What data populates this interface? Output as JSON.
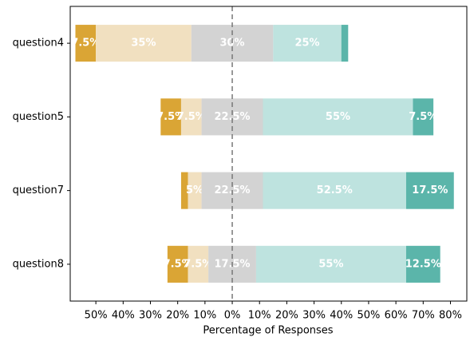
{
  "chart_data": {
    "type": "diverging_bar",
    "xlabel": "Percentage of Responses",
    "categories": [
      "question4",
      "question5",
      "question7",
      "question8"
    ],
    "series": [
      {
        "color": "#daa535",
        "values": [
          7.5,
          7.5,
          2.5,
          7.5
        ],
        "value_labels": [
          "7.5%",
          "7.5%",
          null,
          "7.5%"
        ]
      },
      {
        "color": "#f1e0c0",
        "values": [
          35,
          7.5,
          5,
          7.5
        ],
        "value_labels": [
          "35%",
          "7.5%",
          "5%",
          "7.5%"
        ]
      },
      {
        "color": "#d3d3d3",
        "values": [
          30,
          22.5,
          22.5,
          17.5
        ],
        "value_labels": [
          "30%",
          "22.5%",
          "22.5%",
          "17.5%"
        ]
      },
      {
        "color": "#bee3df",
        "values": [
          25,
          55,
          52.5,
          55
        ],
        "value_labels": [
          "25%",
          "55%",
          "52.5%",
          "55%"
        ]
      },
      {
        "color": "#5bb5aa",
        "values": [
          2.5,
          7.5,
          17.5,
          12.5
        ],
        "value_labels": [
          null,
          "7.5%",
          "17.5%",
          "12.5%"
        ]
      }
    ],
    "neutral_series": 2,
    "xlim": [
      -59.4,
      86
    ],
    "xticks": [
      {
        "value": -50,
        "label": "50%"
      },
      {
        "value": -40,
        "label": "40%"
      },
      {
        "value": -30,
        "label": "30%"
      },
      {
        "value": -20,
        "label": "20%"
      },
      {
        "value": -10,
        "label": "10%"
      },
      {
        "value": 0,
        "label": "0%"
      },
      {
        "value": 10,
        "label": "10%"
      },
      {
        "value": 20,
        "label": "20%"
      },
      {
        "value": 30,
        "label": "30%"
      },
      {
        "value": 40,
        "label": "40%"
      },
      {
        "value": 50,
        "label": "50%"
      },
      {
        "value": 60,
        "label": "60%"
      },
      {
        "value": 70,
        "label": "70%"
      },
      {
        "value": 80,
        "label": "80%"
      }
    ]
  }
}
